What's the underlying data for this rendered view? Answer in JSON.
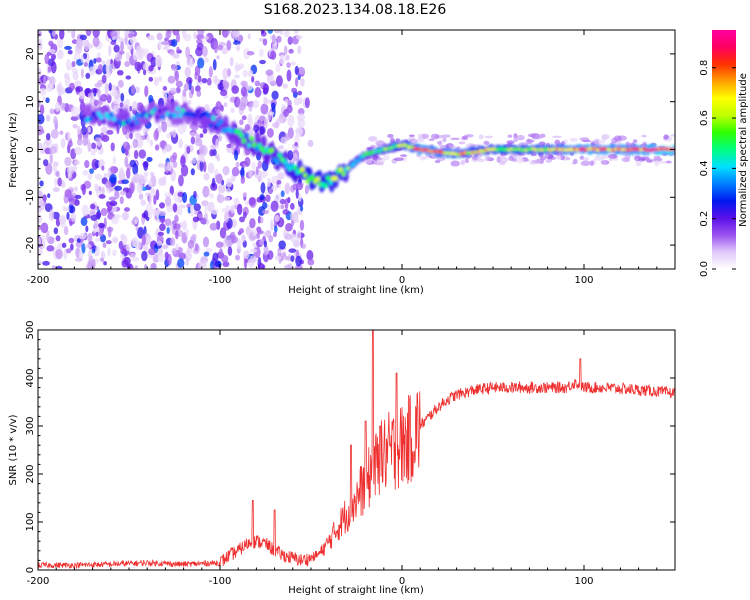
{
  "figure_title": "S168.2023.134.08.18.E26",
  "colorbar": {
    "label": "Normalized spectral amplitude",
    "ticks": [
      "0.0",
      "0.2",
      "0.4",
      "0.6",
      "0.8"
    ],
    "tick_values": [
      0.0,
      0.2,
      0.4,
      0.6,
      0.8
    ],
    "range": [
      0.0,
      0.95
    ],
    "stops": [
      "#ffffff",
      "#e0c8f8",
      "#9a50f0",
      "#5a10e8",
      "#0018f0",
      "#0080ff",
      "#00e0ff",
      "#00ff80",
      "#30ff00",
      "#c0ff00",
      "#ffff00",
      "#ffa000",
      "#ff3000",
      "#ff0060",
      "#ff00a0"
    ]
  },
  "chart_data": [
    {
      "type": "heatmap",
      "title": "",
      "xlabel": "Height of straight line (km)",
      "ylabel": "Frequency (Hz)",
      "xlim": [
        -200,
        150
      ],
      "ylim": [
        -25,
        25
      ],
      "xticks": [
        -200,
        -100,
        0,
        100
      ],
      "xtick_labels": [
        "-200",
        "-100",
        "0",
        "100"
      ],
      "yticks": [
        -20,
        -10,
        0,
        10,
        20
      ],
      "ytick_labels": [
        "-20",
        "-10",
        "0",
        "10",
        "20"
      ],
      "ridge": {
        "x": [
          -170,
          -150,
          -130,
          -110,
          -90,
          -75,
          -60,
          -50,
          -40,
          -30,
          -20,
          -10,
          0,
          10,
          30,
          50,
          80,
          100,
          120,
          150
        ],
        "y": [
          7,
          6,
          8,
          7,
          3,
          0,
          -4,
          -6,
          -7,
          -4,
          -1,
          0,
          1,
          0,
          -1,
          0,
          0,
          0,
          0,
          0
        ],
        "amplitude": [
          0.3,
          0.35,
          0.3,
          0.35,
          0.4,
          0.45,
          0.5,
          0.55,
          0.55,
          0.5,
          0.45,
          0.5,
          0.55,
          0.8,
          0.7,
          0.6,
          0.65,
          0.8,
          0.75,
          0.9
        ]
      }
    },
    {
      "type": "line",
      "title": "",
      "xlabel": "Height of straight line (km)",
      "ylabel": "SNR (10 * v/v)",
      "xlim": [
        -200,
        150
      ],
      "ylim": [
        0,
        500
      ],
      "xticks": [
        -200,
        -100,
        0,
        100
      ],
      "xtick_labels": [
        "-200",
        "-100",
        "0",
        "100"
      ],
      "yticks": [
        0,
        100,
        200,
        300,
        400,
        500
      ],
      "ytick_labels": [
        "0",
        "100",
        "200",
        "300",
        "400",
        "500"
      ],
      "series": [
        {
          "name": "SNR",
          "color": "#ee3030",
          "x": [
            -200,
            -180,
            -160,
            -140,
            -120,
            -100,
            -95,
            -90,
            -85,
            -80,
            -75,
            -70,
            -65,
            -60,
            -55,
            -50,
            -45,
            -40,
            -35,
            -30,
            -25,
            -20,
            -15,
            -10,
            -5,
            0,
            5,
            10,
            15,
            20,
            25,
            30,
            40,
            50,
            60,
            70,
            80,
            90,
            95,
            100,
            110,
            120,
            130,
            140,
            150
          ],
          "y": [
            10,
            10,
            12,
            15,
            12,
            15,
            30,
            40,
            55,
            60,
            55,
            40,
            30,
            25,
            20,
            25,
            35,
            60,
            90,
            120,
            150,
            180,
            210,
            240,
            250,
            260,
            275,
            300,
            320,
            340,
            355,
            365,
            375,
            380,
            380,
            380,
            380,
            380,
            390,
            380,
            380,
            378,
            375,
            372,
            368
          ],
          "spikes": [
            {
              "x": -82,
              "y": 145
            },
            {
              "x": -70,
              "y": 125
            },
            {
              "x": -28,
              "y": 260
            },
            {
              "x": -20,
              "y": 310
            },
            {
              "x": -16,
              "y": 500
            },
            {
              "x": -12,
              "y": 300
            },
            {
              "x": -3,
              "y": 410
            },
            {
              "x": 98,
              "y": 440
            }
          ]
        }
      ]
    }
  ]
}
